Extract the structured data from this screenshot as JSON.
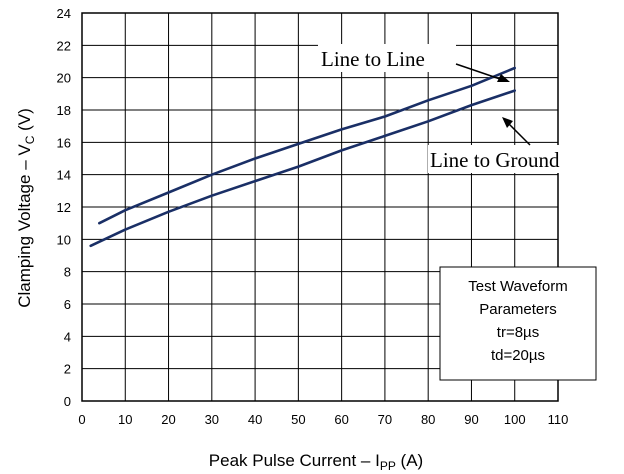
{
  "chart_data": {
    "type": "line",
    "xlabel": {
      "main": "Peak Pulse Current – I",
      "sub": "PP",
      "unit": " (A)"
    },
    "ylabel": {
      "main": "Clamping Voltage – V",
      "sub": "C",
      "unit": " (V)"
    },
    "xlim": [
      0,
      110
    ],
    "ylim": [
      0,
      24
    ],
    "xticks": [
      "0",
      "10",
      "20",
      "30",
      "40",
      "50",
      "60",
      "70",
      "80",
      "90",
      "100",
      "110"
    ],
    "yticks": [
      "0",
      "2",
      "4",
      "6",
      "8",
      "10",
      "12",
      "14",
      "16",
      "18",
      "20",
      "22",
      "24"
    ],
    "grid": true,
    "line_color": "#1a2f66",
    "series": [
      {
        "name": "Line to Line",
        "x": [
          4,
          10,
          20,
          30,
          40,
          50,
          60,
          70,
          80,
          90,
          100
        ],
        "y": [
          11.0,
          11.8,
          12.9,
          14.0,
          15.0,
          15.9,
          16.8,
          17.6,
          18.6,
          19.5,
          20.6
        ]
      },
      {
        "name": "Line to Ground",
        "x": [
          2,
          10,
          20,
          30,
          40,
          50,
          60,
          70,
          80,
          90,
          100
        ],
        "y": [
          9.6,
          10.6,
          11.7,
          12.7,
          13.6,
          14.5,
          15.5,
          16.4,
          17.3,
          18.3,
          19.2
        ]
      }
    ],
    "annotations": [
      "Line to Line",
      "Line to Ground"
    ],
    "info_box": [
      "Test Waveform",
      "Parameters",
      "tr=8µs",
      "td=20µs"
    ]
  }
}
